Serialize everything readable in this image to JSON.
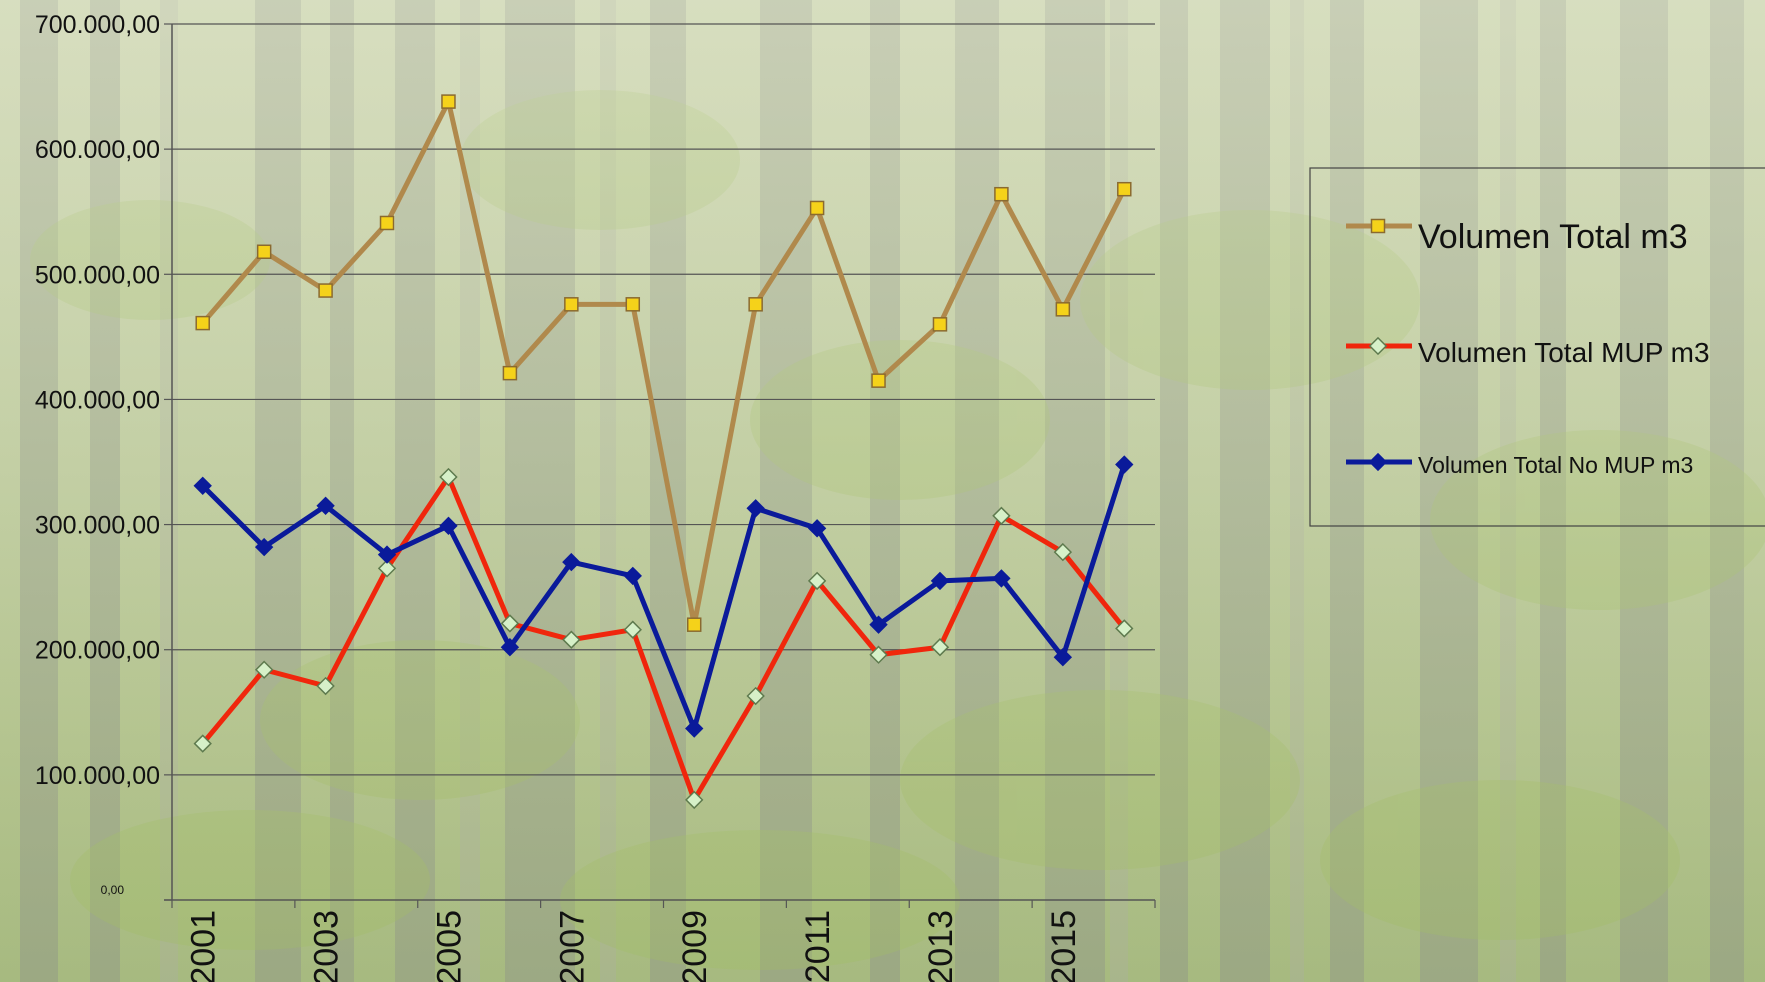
{
  "colors": {
    "volumen_total": "#b0894c",
    "volumen_total_marker": "#f5d21a",
    "volumen_mup": "#f0260c",
    "volumen_mup_marker": "#d6f0c8",
    "volumen_no_mup": "#0a1a9a",
    "grid": "#555555"
  },
  "chart_data": {
    "type": "line",
    "x": [
      2001,
      2002,
      2003,
      2004,
      2005,
      2006,
      2007,
      2008,
      2009,
      2010,
      2011,
      2012,
      2013,
      2014,
      2015,
      2016
    ],
    "x_tick_labels": [
      "2001",
      "2003",
      "2005",
      "2007",
      "2009",
      "2011",
      "2013",
      "2015"
    ],
    "y_tick_labels": [
      "700.000,00",
      "600.000,00",
      "500.000,00",
      "400.000,00",
      "300.000,00",
      "200.000,00",
      "100.000,00",
      "0,00"
    ],
    "ylim": [
      0,
      700000
    ],
    "grid": true,
    "legend_position": "right",
    "series": [
      {
        "name": "Volumen Total m3",
        "marker": "square",
        "values": [
          461000,
          518000,
          487000,
          541000,
          638000,
          421000,
          476000,
          476000,
          220000,
          476000,
          553000,
          415000,
          460000,
          564000,
          472000,
          568000
        ]
      },
      {
        "name": "Volumen Total MUP m3",
        "marker": "diamond",
        "values": [
          125000,
          184000,
          171000,
          265000,
          338000,
          221000,
          208000,
          216000,
          80000,
          163000,
          255000,
          196000,
          202000,
          307000,
          278000,
          217000
        ]
      },
      {
        "name": "Volumen Total No MUP m3",
        "marker": "diamond",
        "values": [
          331000,
          282000,
          315000,
          276000,
          299000,
          202000,
          270000,
          259000,
          137000,
          313000,
          297000,
          220000,
          255000,
          257000,
          194000,
          348000
        ]
      }
    ]
  }
}
